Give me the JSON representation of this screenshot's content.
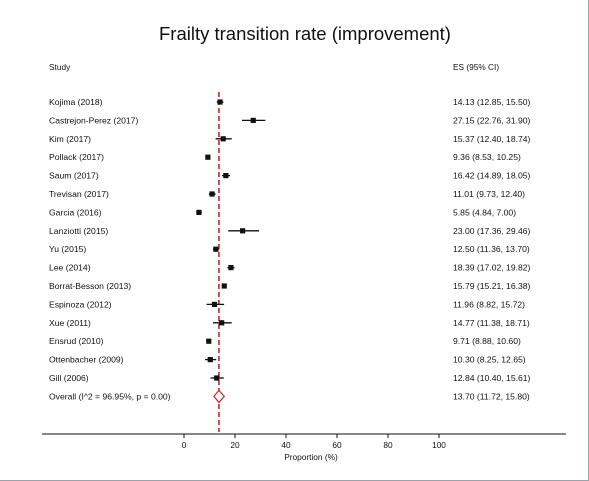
{
  "chart_data": {
    "type": "forest",
    "title": "Frailty transition rate (improvement)",
    "columns": {
      "study": "Study",
      "es": "ES (95% CI)"
    },
    "xlabel": "Proportion (%)",
    "xlim": [
      0,
      100
    ],
    "xticks": [
      0,
      20,
      40,
      60,
      80,
      100
    ],
    "reference_line": 13.7,
    "grid": false,
    "colors": {
      "marker": "#111111",
      "ci": "#111111",
      "reference_line": "#d62020",
      "overall_diamond": "#d62020",
      "text": "#111111"
    },
    "studies": [
      {
        "label": "Kojima (2018)",
        "es_text": "14.13 (12.85, 15.50)",
        "es": 14.13,
        "lo": 12.85,
        "hi": 15.5
      },
      {
        "label": "Castrejon-Perez (2017)",
        "es_text": "27.15 (22.76, 31.90)",
        "es": 27.15,
        "lo": 22.76,
        "hi": 31.9
      },
      {
        "label": "Kim (2017)",
        "es_text": "15.37 (12.40, 18.74)",
        "es": 15.37,
        "lo": 12.4,
        "hi": 18.74
      },
      {
        "label": "Pollack (2017)",
        "es_text": "9.36 (8.53, 10.25)",
        "es": 9.36,
        "lo": 8.53,
        "hi": 10.25
      },
      {
        "label": "Saum (2017)",
        "es_text": "16.42 (14.89, 18.05)",
        "es": 16.42,
        "lo": 14.89,
        "hi": 18.05
      },
      {
        "label": "Trevisan (2017)",
        "es_text": "11.01 (9.73, 12.40)",
        "es": 11.01,
        "lo": 9.73,
        "hi": 12.4
      },
      {
        "label": "Garcia (2016)",
        "es_text": "5.85 (4.84, 7.00)",
        "es": 5.85,
        "lo": 4.84,
        "hi": 7.0
      },
      {
        "label": "Lanziotti (2015)",
        "es_text": "23.00 (17.36, 29.46)",
        "es": 23.0,
        "lo": 17.36,
        "hi": 29.46
      },
      {
        "label": "Yu (2015)",
        "es_text": "12.50 (11.36, 13.70)",
        "es": 12.5,
        "lo": 11.36,
        "hi": 13.7
      },
      {
        "label": "Lee (2014)",
        "es_text": "18.39 (17.02, 19.82)",
        "es": 18.39,
        "lo": 17.02,
        "hi": 19.82
      },
      {
        "label": "Borrat-Besson (2013)",
        "es_text": "15.79 (15.21, 16.38)",
        "es": 15.79,
        "lo": 15.21,
        "hi": 16.38
      },
      {
        "label": "Espinoza (2012)",
        "es_text": "11.96 (8.82, 15.72)",
        "es": 11.96,
        "lo": 8.82,
        "hi": 15.72
      },
      {
        "label": "Xue (2011)",
        "es_text": "14.77 (11.38, 18.71)",
        "es": 14.77,
        "lo": 11.38,
        "hi": 18.71
      },
      {
        "label": "Ensrud (2010)",
        "es_text": "9.71 (8.88, 10.60)",
        "es": 9.71,
        "lo": 8.88,
        "hi": 10.6
      },
      {
        "label": "Ottenbacher (2009)",
        "es_text": "10.30 (8.25, 12.65)",
        "es": 10.3,
        "lo": 8.25,
        "hi": 12.65
      },
      {
        "label": "Gill (2006)",
        "es_text": "12.84 (10.40, 15.61)",
        "es": 12.84,
        "lo": 10.4,
        "hi": 15.61
      }
    ],
    "overall": {
      "label": "Overall  (I^2 = 96.95%, p = 0.00)",
      "es_text": "13.70 (11.72, 15.80)",
      "es": 13.7,
      "lo": 11.72,
      "hi": 15.8
    }
  }
}
